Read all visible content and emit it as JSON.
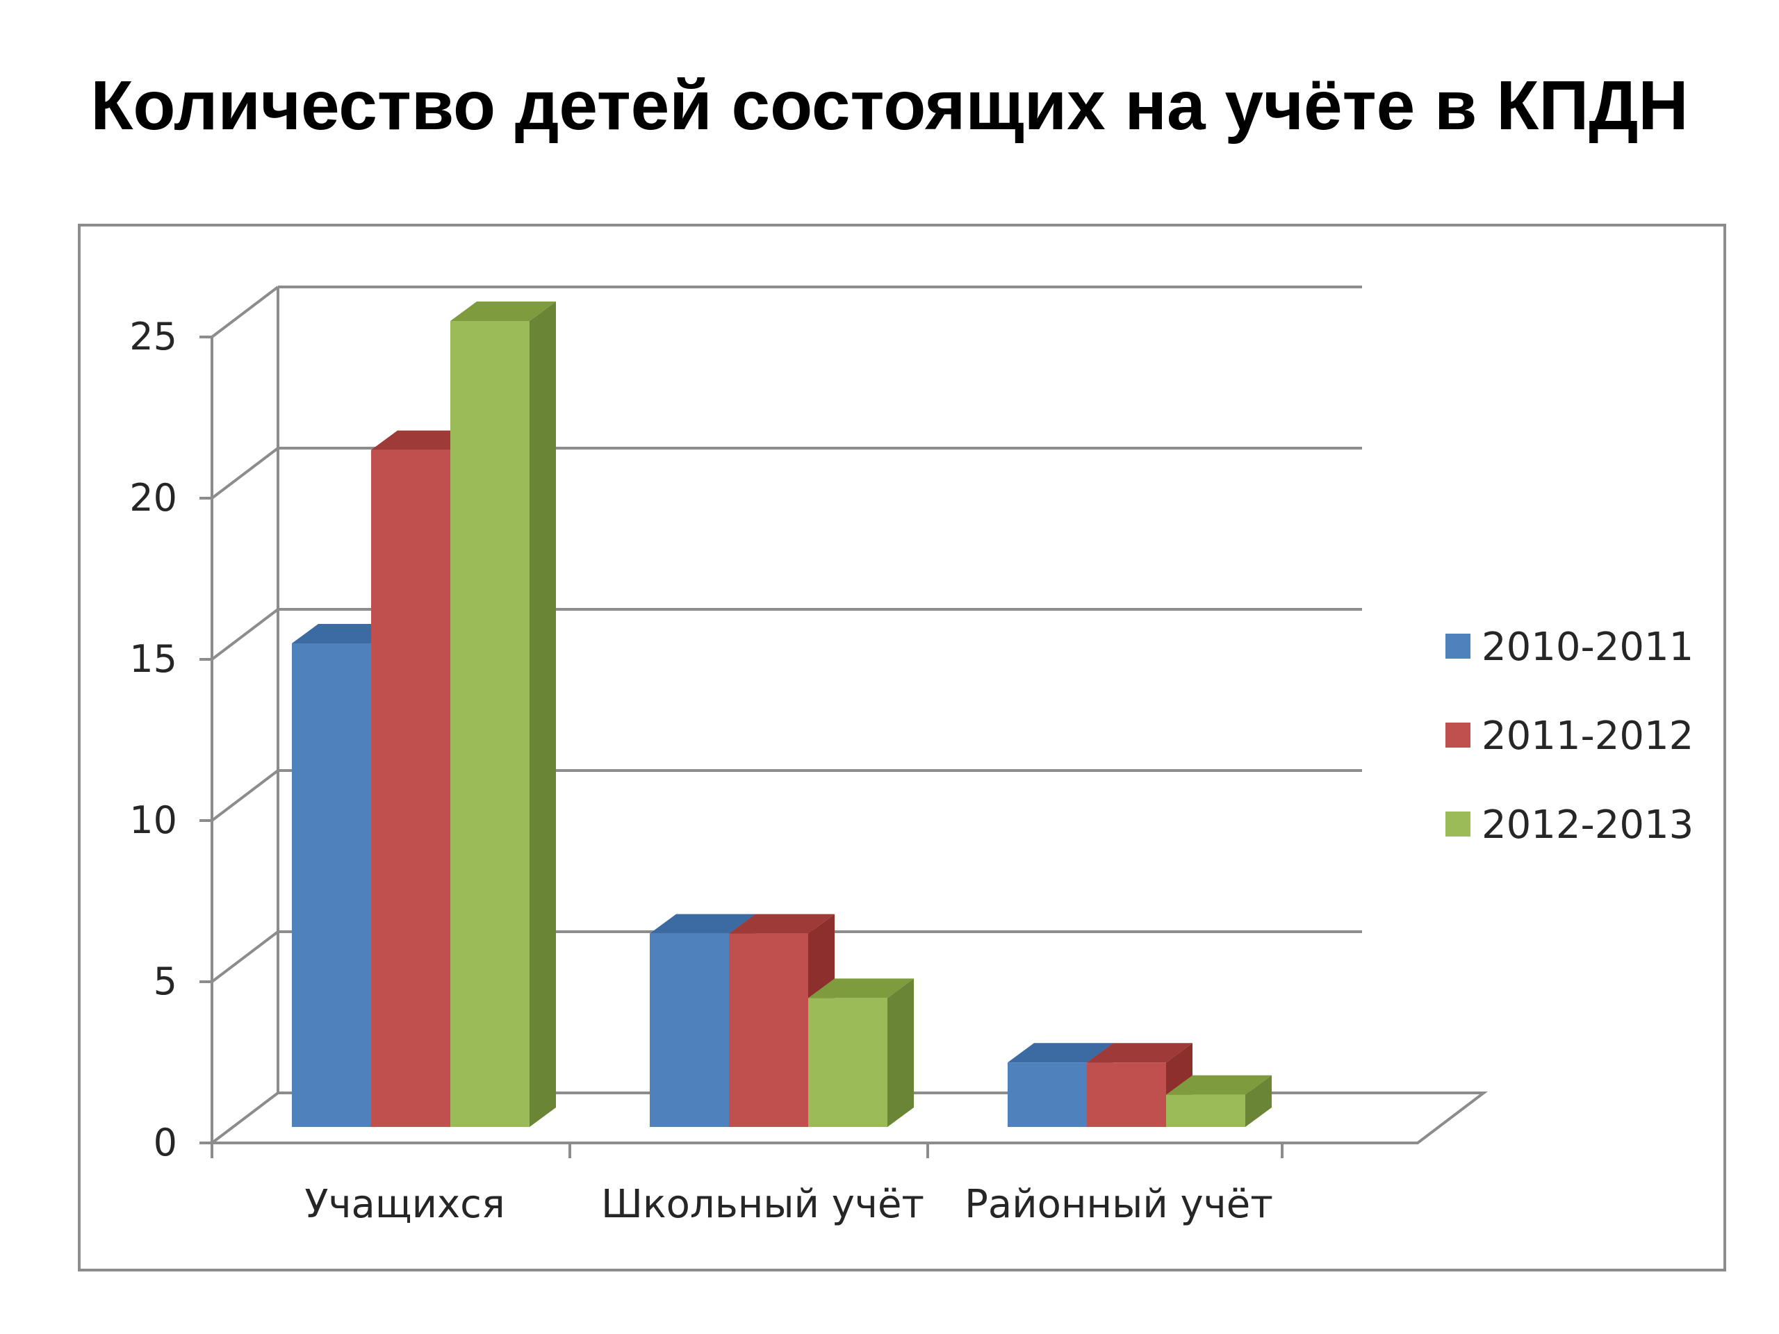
{
  "title": "Количество детей состоящих на учёте в КПДН",
  "chart_data": {
    "type": "bar",
    "style": "3d-clustered-column",
    "title": "Количество детей состоящих на учёте в КПДН",
    "categories": [
      "Учащихся",
      "Школьный учёт",
      "Районный учёт"
    ],
    "series": [
      {
        "name": "2010-2011",
        "values": [
          15,
          6,
          2
        ],
        "color": "#4f81bd",
        "top_color": "#3c6aa3",
        "side_color": "#36618f"
      },
      {
        "name": "2011-2012",
        "values": [
          21,
          6,
          2
        ],
        "color": "#c0504d",
        "top_color": "#9e3b38",
        "side_color": "#8c2f2d"
      },
      {
        "name": "2012-2013",
        "values": [
          25,
          4,
          1
        ],
        "color": "#9bbb59",
        "top_color": "#7e9c3d",
        "side_color": "#6a8535"
      }
    ],
    "yticks": [
      0,
      5,
      10,
      15,
      20,
      25
    ],
    "ylim": [
      0,
      25
    ],
    "grid": true,
    "legend_position": "right",
    "xlabel": "",
    "ylabel": ""
  }
}
